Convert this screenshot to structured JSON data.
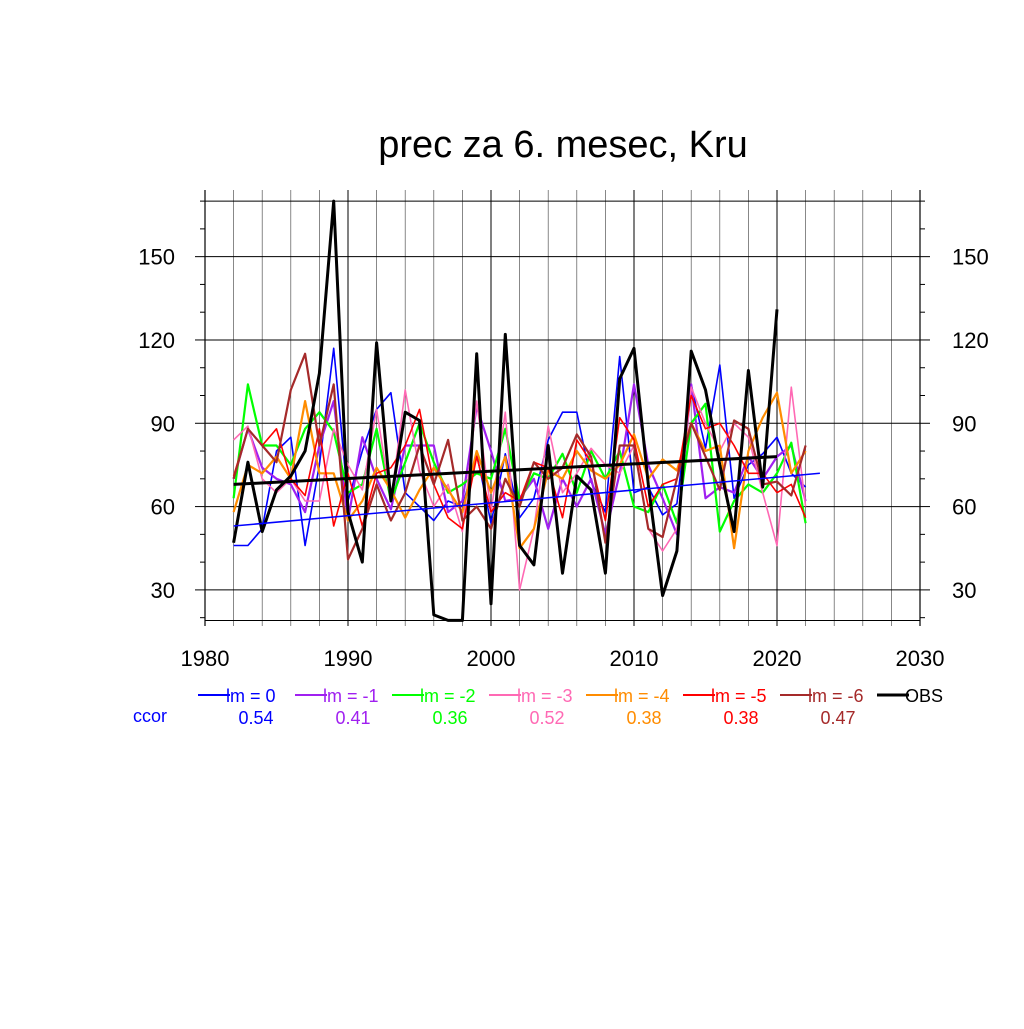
{
  "chart_data": {
    "type": "line",
    "title": "prec za 6. mesec, Kru",
    "xlabel": "",
    "ylabel": "",
    "xlim": [
      1980,
      2030
    ],
    "ylim": [
      17,
      174
    ],
    "x_ticks": [
      1980,
      1990,
      2000,
      2010,
      2020,
      2030
    ],
    "y_ticks": [
      30,
      60,
      90,
      120,
      150
    ],
    "grid": true,
    "legend_position": "bottom",
    "ccor_label": "ccor",
    "series": [
      {
        "name": "lm = 0",
        "color": "#0000ff",
        "ccor": "0.54",
        "x": [
          1982,
          1983,
          1984,
          1985,
          1986,
          1987,
          1988,
          1989,
          1990,
          1991,
          1992,
          1993,
          1994,
          1995,
          1996,
          1997,
          1998,
          1999,
          2000,
          2001,
          2002,
          2003,
          2004,
          2005,
          2006,
          2007,
          2008,
          2009,
          2010,
          2011,
          2012,
          2013,
          2014,
          2015,
          2016,
          2017,
          2018,
          2019,
          2020,
          2021,
          2022
        ],
        "values": [
          46,
          46,
          52,
          80,
          85,
          46,
          75,
          117,
          62,
          80,
          95,
          101,
          65,
          60,
          55,
          62,
          60,
          79,
          54,
          79,
          56,
          63,
          84,
          94,
          94,
          69,
          58,
          114,
          65,
          67,
          57,
          61,
          104,
          81,
          111,
          63,
          75,
          79,
          85,
          72,
          67
        ],
        "trend": [
          53,
          72
        ]
      },
      {
        "name": "lm = -1",
        "color": "#a020f0",
        "ccor": "0.41",
        "x": [
          1982,
          1983,
          1984,
          1985,
          1986,
          1987,
          1988,
          1989,
          1990,
          1991,
          1992,
          1993,
          1994,
          1995,
          1996,
          1997,
          1998,
          1999,
          2000,
          2001,
          2002,
          2003,
          2004,
          2005,
          2006,
          2007,
          2008,
          2009,
          2010,
          2011,
          2012,
          2013,
          2014,
          2015,
          2016,
          2017,
          2018,
          2019,
          2020,
          2021,
          2022
        ],
        "values": [
          70,
          88,
          74,
          70,
          68,
          58,
          82,
          98,
          55,
          85,
          70,
          59,
          82,
          82,
          82,
          58,
          62,
          96,
          80,
          62,
          63,
          70,
          52,
          70,
          60,
          70,
          50,
          72,
          104,
          75,
          63,
          50,
          104,
          63,
          67,
          65,
          78,
          70,
          78,
          82,
          62
        ],
        "trend": null
      },
      {
        "name": "lm = -2",
        "color": "#00ff00",
        "ccor": "0.36",
        "x": [
          1982,
          1983,
          1984,
          1985,
          1986,
          1987,
          1988,
          1989,
          1990,
          1991,
          1992,
          1993,
          1994,
          1995,
          1996,
          1997,
          1998,
          1999,
          2000,
          2001,
          2002,
          2003,
          2004,
          2005,
          2006,
          2007,
          2008,
          2009,
          2010,
          2011,
          2012,
          2013,
          2014,
          2015,
          2016,
          2017,
          2018,
          2019,
          2020,
          2021,
          2022
        ],
        "values": [
          63,
          104,
          82,
          82,
          75,
          88,
          94,
          87,
          65,
          68,
          88,
          62,
          76,
          90,
          76,
          65,
          68,
          72,
          70,
          88,
          62,
          72,
          70,
          79,
          65,
          80,
          70,
          80,
          60,
          58,
          68,
          54,
          90,
          97,
          51,
          62,
          68,
          65,
          72,
          83,
          54
        ],
        "trend": null
      },
      {
        "name": "lm = -3",
        "color": "#ff69b4",
        "ccor": "0.52",
        "x": [
          1982,
          1983,
          1984,
          1985,
          1986,
          1987,
          1988,
          1989,
          1990,
          1991,
          1992,
          1993,
          1994,
          1995,
          1996,
          1997,
          1998,
          1999,
          2000,
          2001,
          2002,
          2003,
          2004,
          2005,
          2006,
          2007,
          2008,
          2009,
          2010,
          2011,
          2012,
          2013,
          2014,
          2015,
          2016,
          2017,
          2018,
          2019,
          2020,
          2021,
          2022
        ],
        "values": [
          84,
          89,
          70,
          65,
          70,
          62,
          62,
          88,
          75,
          66,
          95,
          62,
          102,
          73,
          60,
          68,
          51,
          98,
          58,
          94,
          30,
          52,
          89,
          65,
          72,
          81,
          75,
          72,
          82,
          52,
          44,
          52,
          103,
          90,
          80,
          90,
          85,
          65,
          46,
          103,
          60
        ],
        "trend": null
      },
      {
        "name": "lm = -4",
        "color": "#ff8c00",
        "ccor": "0.38",
        "x": [
          1982,
          1983,
          1984,
          1985,
          1986,
          1987,
          1988,
          1989,
          1990,
          1991,
          1992,
          1993,
          1994,
          1995,
          1996,
          1997,
          1998,
          1999,
          2000,
          2001,
          2002,
          2003,
          2004,
          2005,
          2006,
          2007,
          2008,
          2009,
          2010,
          2011,
          2012,
          2013,
          2014,
          2015,
          2016,
          2017,
          2018,
          2019,
          2020,
          2021,
          2022
        ],
        "values": [
          58,
          75,
          72,
          78,
          70,
          98,
          72,
          72,
          55,
          62,
          74,
          66,
          56,
          66,
          74,
          66,
          58,
          80,
          65,
          78,
          45,
          52,
          73,
          70,
          80,
          73,
          70,
          75,
          86,
          70,
          77,
          73,
          90,
          80,
          82,
          45,
          80,
          92,
          101,
          72,
          80
        ],
        "trend": null
      },
      {
        "name": "lm = -5",
        "color": "#ff0000",
        "ccor": "0.38",
        "x": [
          1982,
          1983,
          1984,
          1985,
          1986,
          1987,
          1988,
          1989,
          1990,
          1991,
          1992,
          1993,
          1994,
          1995,
          1996,
          1997,
          1998,
          1999,
          2000,
          2001,
          2002,
          2003,
          2004,
          2005,
          2006,
          2007,
          2008,
          2009,
          2010,
          2011,
          2012,
          2013,
          2014,
          2015,
          2016,
          2017,
          2018,
          2019,
          2020,
          2021,
          2022
        ],
        "values": [
          71,
          88,
          82,
          88,
          70,
          64,
          88,
          53,
          72,
          53,
          72,
          74,
          82,
          95,
          68,
          56,
          52,
          78,
          58,
          65,
          62,
          76,
          74,
          56,
          84,
          76,
          55,
          92,
          84,
          60,
          68,
          70,
          100,
          88,
          90,
          82,
          72,
          72,
          65,
          68,
          56
        ],
        "trend": null
      },
      {
        "name": "lm = -6",
        "color": "#a52a2a",
        "ccor": "0.47",
        "x": [
          1982,
          1983,
          1984,
          1985,
          1986,
          1987,
          1988,
          1989,
          1990,
          1991,
          1992,
          1993,
          1994,
          1995,
          1996,
          1997,
          1998,
          1999,
          2000,
          2001,
          2002,
          2003,
          2004,
          2005,
          2006,
          2007,
          2008,
          2009,
          2010,
          2011,
          2012,
          2013,
          2014,
          2015,
          2016,
          2017,
          2018,
          2019,
          2020,
          2021,
          2022
        ],
        "values": [
          70,
          88,
          82,
          76,
          102,
          115,
          82,
          104,
          41,
          52,
          68,
          55,
          65,
          82,
          68,
          84,
          55,
          60,
          52,
          70,
          60,
          76,
          70,
          74,
          86,
          78,
          47,
          82,
          82,
          52,
          49,
          70,
          90,
          78,
          66,
          91,
          88,
          68,
          69,
          64,
          82
        ],
        "trend": null
      },
      {
        "name": "OBS",
        "color": "#000000",
        "ccor": "",
        "x": [
          1982,
          1983,
          1984,
          1985,
          1986,
          1987,
          1988,
          1989,
          1990,
          1991,
          1992,
          1993,
          1994,
          1995,
          1996,
          1997,
          1998,
          1999,
          2000,
          2001,
          2002,
          2003,
          2004,
          2005,
          2006,
          2007,
          2008,
          2009,
          2010,
          2011,
          2012,
          2013,
          2014,
          2015,
          2016,
          2017,
          2018,
          2019,
          2020
        ],
        "values": [
          47,
          76,
          51,
          66,
          71,
          80,
          108,
          170,
          58,
          40,
          119,
          62,
          94,
          91,
          21,
          19,
          19,
          115,
          25,
          122,
          46,
          39,
          82,
          36,
          71,
          66,
          36,
          106,
          117,
          68,
          28,
          44,
          116,
          102,
          75,
          51,
          109,
          67,
          131
        ],
        "trend": [
          68,
          78
        ]
      }
    ]
  }
}
